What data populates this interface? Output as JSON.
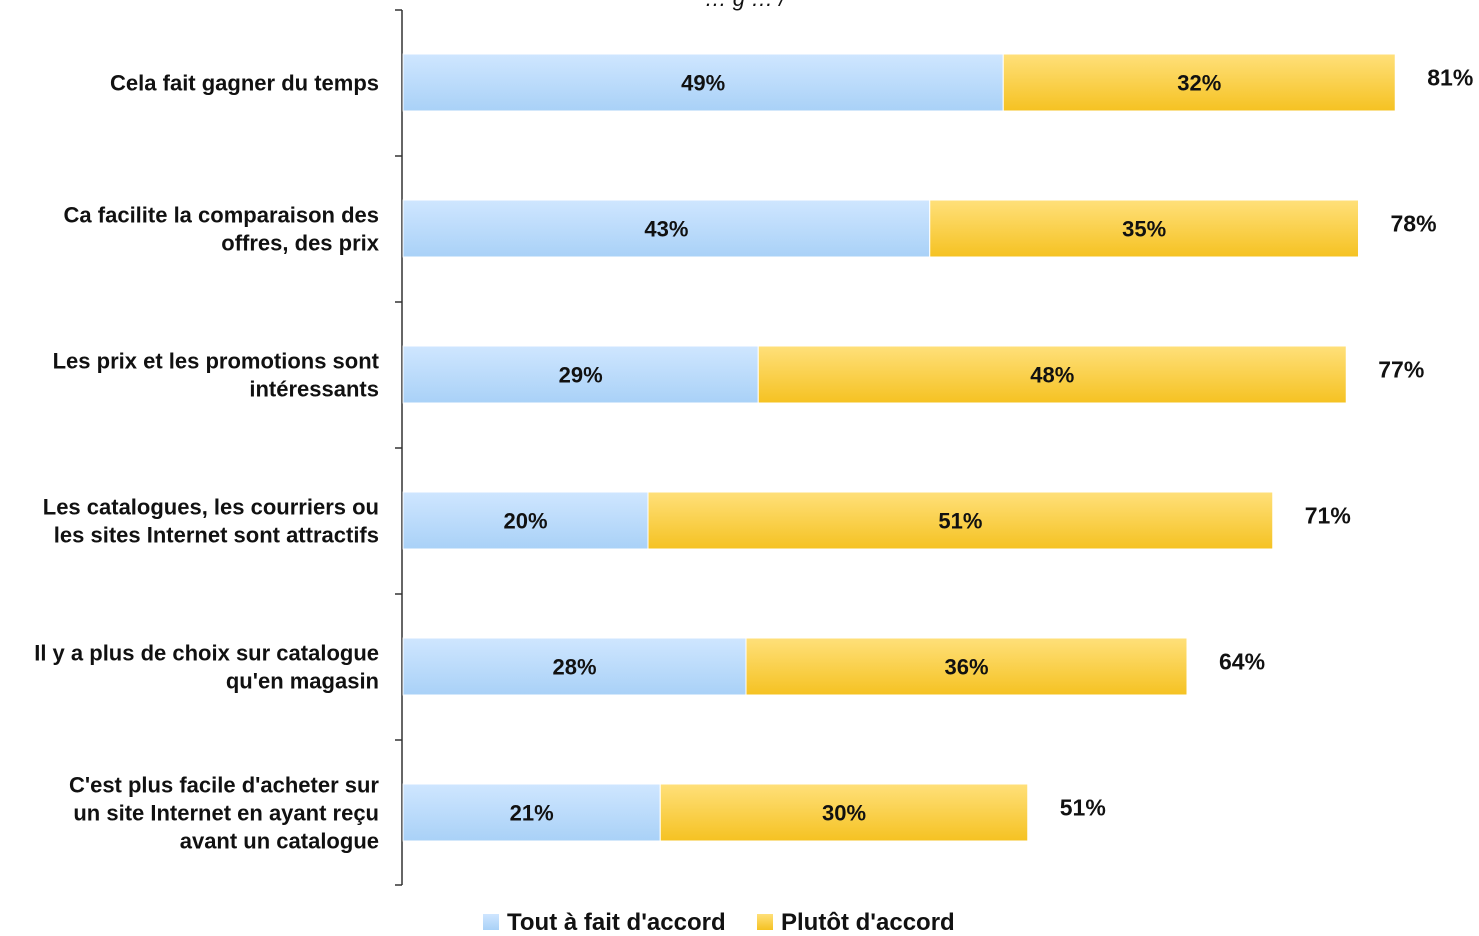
{
  "top_text_cut": "… g … /",
  "colors": {
    "series1_light": "#cfe6ff",
    "series1_dark": "#a9d1f7",
    "series2_light": "#ffe07a",
    "series2_dark": "#f5c222",
    "axis": "#333333"
  },
  "chart_data": {
    "type": "bar",
    "orientation": "horizontal",
    "stacked": true,
    "categories": [
      [
        "Cela fait gagner du temps"
      ],
      [
        "Ca facilite la comparaison des",
        "offres, des prix"
      ],
      [
        "Les prix et les promotions sont",
        "intéressants"
      ],
      [
        "Les catalogues, les courriers ou",
        "les sites Internet sont attractifs"
      ],
      [
        "Il y a plus de choix sur catalogue",
        "qu'en magasin"
      ],
      [
        "C'est plus facile d'acheter sur",
        "un site Internet en ayant reçu",
        "avant un catalogue"
      ]
    ],
    "series": [
      {
        "name": "Tout à fait d'accord",
        "values": [
          49,
          43,
          29,
          20,
          28,
          21
        ],
        "labels": [
          "49%",
          "43%",
          "29%",
          "20%",
          "28%",
          "21%"
        ]
      },
      {
        "name": "Plutôt d'accord",
        "values": [
          32,
          35,
          48,
          51,
          36,
          30
        ],
        "labels": [
          "32%",
          "35%",
          "48%",
          "51%",
          "36%",
          "30%"
        ]
      }
    ],
    "totals": [
      "81%",
      "78%",
      "77%",
      "71%",
      "64%",
      "51%"
    ],
    "xlim": [
      0,
      100
    ],
    "legend_position": "bottom",
    "grid": false
  }
}
